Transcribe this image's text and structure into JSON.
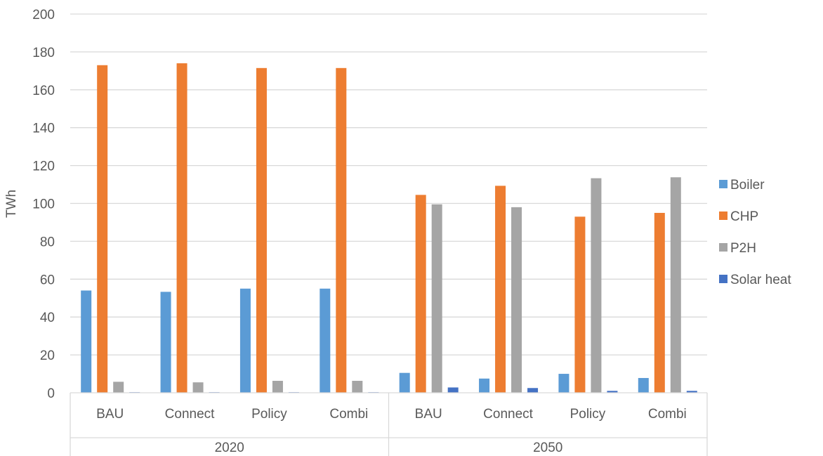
{
  "chart_data": {
    "type": "bar",
    "title": "",
    "xlabel": "",
    "ylabel": "TWh",
    "ylim": [
      0,
      200
    ],
    "yticks": [
      0,
      20,
      40,
      60,
      80,
      100,
      120,
      140,
      160,
      180,
      200
    ],
    "grid": true,
    "legend_position": "right",
    "groups": [
      {
        "label": "2020",
        "categories": [
          "BAU",
          "Connect",
          "Policy",
          "Combi"
        ]
      },
      {
        "label": "2050",
        "categories": [
          "BAU",
          "Connect",
          "Policy",
          "Combi"
        ]
      }
    ],
    "categories": [
      "BAU",
      "Connect",
      "Policy",
      "Combi",
      "BAU",
      "Connect",
      "Policy",
      "Combi"
    ],
    "series": [
      {
        "name": "Boiler",
        "color": "#5B9BD5",
        "values": [
          54,
          53.3,
          55,
          55,
          10.5,
          7.5,
          10,
          7.8
        ]
      },
      {
        "name": "CHP",
        "color": "#ED7D31",
        "values": [
          173,
          174,
          171.5,
          171.5,
          104.5,
          109.3,
          93,
          95
        ]
      },
      {
        "name": "P2H",
        "color": "#A5A5A5",
        "values": [
          5.8,
          5.5,
          6.3,
          6.3,
          99.5,
          98,
          113.3,
          113.8
        ]
      },
      {
        "name": "Solar heat",
        "color": "#4472C4",
        "values": [
          0.3,
          0.3,
          0.3,
          0.3,
          2.8,
          2.5,
          1,
          1
        ]
      }
    ]
  }
}
